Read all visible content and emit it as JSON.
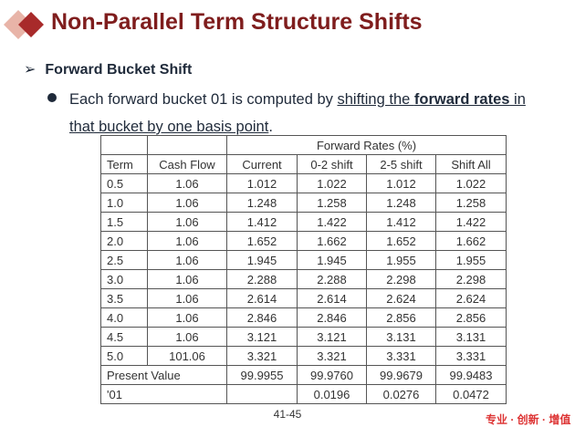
{
  "header": {
    "title": "Non-Parallel Term Structure Shifts"
  },
  "section": {
    "heading": "Forward Bucket Shift",
    "bullet": [
      "Each forward bucket 01 is computed by ",
      "shifting the ",
      "forward rates",
      " in that bucket by one basis point",
      "."
    ]
  },
  "table": {
    "group_header": "Forward Rates (%)",
    "columns": [
      "Term",
      "Cash Flow",
      "Current",
      "0-2 shift",
      "2-5 shift",
      "Shift All"
    ],
    "rows": [
      [
        "0.5",
        "1.06",
        "1.012",
        "1.022",
        "1.012",
        "1.022"
      ],
      [
        "1.0",
        "1.06",
        "1.248",
        "1.258",
        "1.248",
        "1.258"
      ],
      [
        "1.5",
        "1.06",
        "1.412",
        "1.422",
        "1.412",
        "1.422"
      ],
      [
        "2.0",
        "1.06",
        "1.652",
        "1.662",
        "1.652",
        "1.662"
      ],
      [
        "2.5",
        "1.06",
        "1.945",
        "1.945",
        "1.955",
        "1.955"
      ],
      [
        "3.0",
        "1.06",
        "2.288",
        "2.288",
        "2.298",
        "2.298"
      ],
      [
        "3.5",
        "1.06",
        "2.614",
        "2.614",
        "2.624",
        "2.624"
      ],
      [
        "4.0",
        "1.06",
        "2.846",
        "2.846",
        "2.856",
        "2.856"
      ],
      [
        "4.5",
        "1.06",
        "3.121",
        "3.121",
        "3.131",
        "3.131"
      ],
      [
        "5.0",
        "101.06",
        "3.321",
        "3.321",
        "3.331",
        "3.331"
      ]
    ],
    "present_value": {
      "label": "Present Value",
      "values": [
        "99.9955",
        "99.9760",
        "99.9679",
        "99.9483"
      ]
    },
    "bucket01": {
      "label": "'01",
      "values": [
        "0.0196",
        "0.0276",
        "0.0472"
      ]
    }
  },
  "footer": {
    "page": "41-45",
    "watermark": "专业 · 创新 · 增值"
  }
}
